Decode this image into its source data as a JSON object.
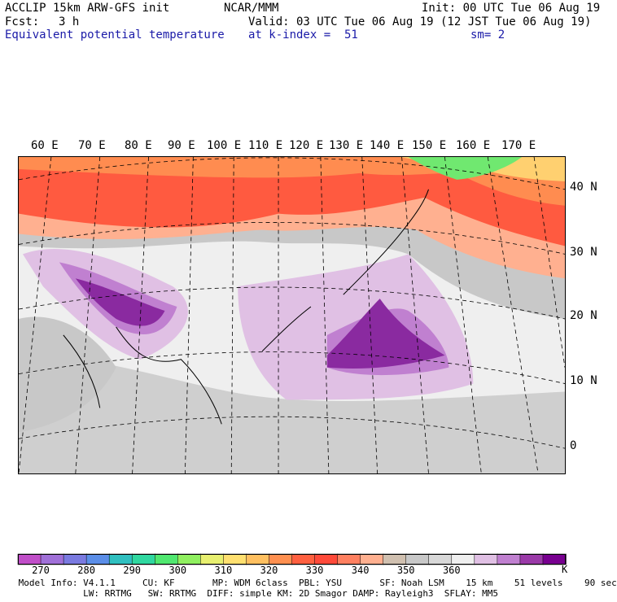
{
  "header": {
    "model": "ACCLIP 15km ARW-GFS init",
    "org": "NCAR/MMM",
    "init": "Init: 00 UTC Tue 06 Aug 19",
    "fcst_label": "Fcst:",
    "fcst_value": "3 h",
    "valid": "Valid: 03 UTC Tue 06 Aug 19 (12 JST Tue 06 Aug 19)",
    "field": "Equivalent potential temperature",
    "level": "at k-index =  51",
    "smooth": "sm= 2"
  },
  "map": {
    "lon_labels": [
      "60 E",
      "70 E",
      "80 E",
      "90 E",
      "100 E",
      "110 E",
      "120 E",
      "130 E",
      "140 E",
      "150 E",
      "160 E",
      "170 E"
    ],
    "lat_labels": [
      "40 N",
      "30 N",
      "20 N",
      "10 N",
      "0"
    ]
  },
  "colorbar": {
    "unit": "K",
    "tick_labels": [
      "270",
      "280",
      "290",
      "300",
      "310",
      "320",
      "330",
      "340",
      "350",
      "360"
    ],
    "colors": [
      "#c04ec8",
      "#a070d8",
      "#7a7ae0",
      "#5b8ee8",
      "#30c0c0",
      "#30d8a0",
      "#50e870",
      "#90f060",
      "#e8f070",
      "#ffe070",
      "#ffc060",
      "#ff9050",
      "#ff6040",
      "#ff4a3a",
      "#ff8060",
      "#ffb090",
      "#d0c0b0",
      "#c8c8c8",
      "#d8d8d8",
      "#efefef",
      "#e0c0e4",
      "#c080d0",
      "#9a3aa8",
      "#780090"
    ]
  },
  "footer": {
    "line1": " Model Info: V4.1.1     CU: KF       MP: WDM 6class  PBL: YSU       SF: Noah LSM    15 km    51 levels    90 sec",
    "line2": "             LW: RRTMG   SW: RRTMG  DIFF: simple KM: 2D Smagor DAMP: Rayleigh3  SFLAY: MM5"
  }
}
